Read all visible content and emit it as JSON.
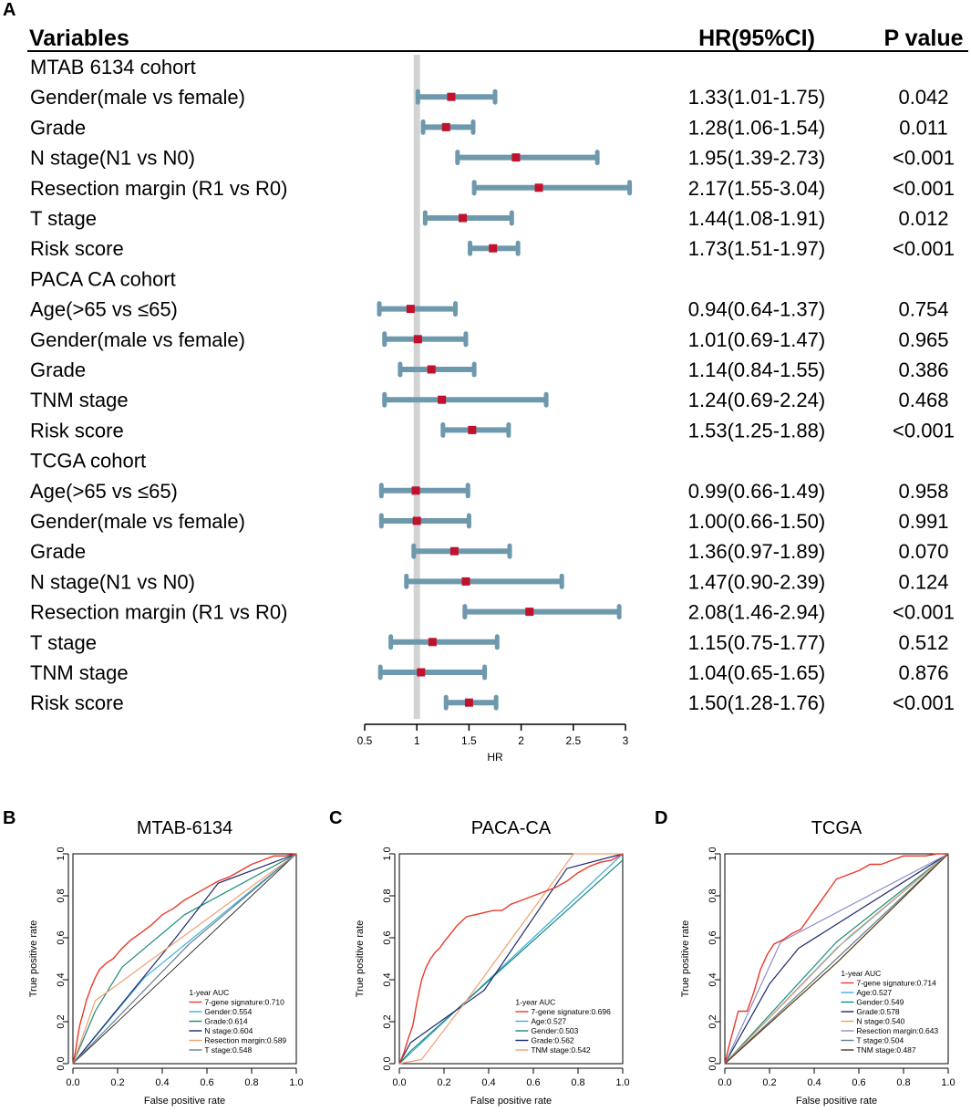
{
  "panels": {
    "A": "A",
    "B": "B",
    "C": "C",
    "D": "D"
  },
  "colors": {
    "ci": "#6e99ad",
    "point": "#c0122c",
    "ref": "#d3d3d3"
  },
  "chart_data": [
    {
      "type": "forest",
      "headers": {
        "variables": "Variables",
        "hr": "HR(95%CI)",
        "p": "P value"
      },
      "xlabel": "HR",
      "xlim": [
        0.5,
        3
      ],
      "xticks": [
        "0.5",
        "1",
        "1.5",
        "2",
        "2.5",
        "3"
      ],
      "ref": 1,
      "rows": [
        {
          "label": "MTAB 6134 cohort",
          "header": true
        },
        {
          "label": "Gender(male vs female)",
          "hr": 1.33,
          "lo": 1.01,
          "hi": 1.75,
          "ci": "1.33(1.01-1.75)",
          "p": "0.042"
        },
        {
          "label": "Grade",
          "hr": 1.28,
          "lo": 1.06,
          "hi": 1.54,
          "ci": "1.28(1.06-1.54)",
          "p": "0.011"
        },
        {
          "label": "N stage(N1 vs N0)",
          "hr": 1.95,
          "lo": 1.39,
          "hi": 2.73,
          "ci": "1.95(1.39-2.73)",
          "p": "<0.001"
        },
        {
          "label": "Resection margin (R1 vs R0)",
          "hr": 2.17,
          "lo": 1.55,
          "hi": 3.04,
          "ci": "2.17(1.55-3.04)",
          "p": "<0.001"
        },
        {
          "label": "T stage",
          "hr": 1.44,
          "lo": 1.08,
          "hi": 1.91,
          "ci": "1.44(1.08-1.91)",
          "p": "0.012"
        },
        {
          "label": "Risk score",
          "hr": 1.73,
          "lo": 1.51,
          "hi": 1.97,
          "ci": "1.73(1.51-1.97)",
          "p": "<0.001"
        },
        {
          "label": "PACA CA cohort",
          "header": true
        },
        {
          "label": "Age(>65 vs ≤65)",
          "hr": 0.94,
          "lo": 0.64,
          "hi": 1.37,
          "ci": "0.94(0.64-1.37)",
          "p": "0.754"
        },
        {
          "label": "Gender(male vs female)",
          "hr": 1.01,
          "lo": 0.69,
          "hi": 1.47,
          "ci": "1.01(0.69-1.47)",
          "p": "0.965"
        },
        {
          "label": "Grade",
          "hr": 1.14,
          "lo": 0.84,
          "hi": 1.55,
          "ci": "1.14(0.84-1.55)",
          "p": "0.386"
        },
        {
          "label": "TNM stage",
          "hr": 1.24,
          "lo": 0.69,
          "hi": 2.24,
          "ci": "1.24(0.69-2.24)",
          "p": "0.468"
        },
        {
          "label": "Risk score",
          "hr": 1.53,
          "lo": 1.25,
          "hi": 1.88,
          "ci": "1.53(1.25-1.88)",
          "p": "<0.001"
        },
        {
          "label": "TCGA cohort",
          "header": true
        },
        {
          "label": "Age(>65 vs ≤65)",
          "hr": 0.99,
          "lo": 0.66,
          "hi": 1.49,
          "ci": "0.99(0.66-1.49)",
          "p": "0.958"
        },
        {
          "label": "Gender(male vs female)",
          "hr": 1.0,
          "lo": 0.66,
          "hi": 1.5,
          "ci": "1.00(0.66-1.50)",
          "p": "0.991"
        },
        {
          "label": "Grade",
          "hr": 1.36,
          "lo": 0.97,
          "hi": 1.89,
          "ci": "1.36(0.97-1.89)",
          "p": "0.070"
        },
        {
          "label": "N stage(N1 vs N0)",
          "hr": 1.47,
          "lo": 0.9,
          "hi": 2.39,
          "ci": "1.47(0.90-2.39)",
          "p": "0.124"
        },
        {
          "label": "Resection margin (R1 vs R0)",
          "hr": 2.08,
          "lo": 1.46,
          "hi": 2.94,
          "ci": "2.08(1.46-2.94)",
          "p": "<0.001"
        },
        {
          "label": "T stage",
          "hr": 1.15,
          "lo": 0.75,
          "hi": 1.77,
          "ci": "1.15(0.75-1.77)",
          "p": "0.512"
        },
        {
          "label": "TNM stage",
          "hr": 1.04,
          "lo": 0.65,
          "hi": 1.65,
          "ci": "1.04(0.65-1.65)",
          "p": "0.876"
        },
        {
          "label": "Risk score",
          "hr": 1.5,
          "lo": 1.28,
          "hi": 1.76,
          "ci": "1.50(1.28-1.76)",
          "p": "<0.001"
        }
      ]
    },
    {
      "type": "line",
      "panel": "B",
      "title": "MTAB-6134",
      "xlabel": "False positive rate",
      "ylabel": "True positive rate",
      "xlim": [
        0,
        1
      ],
      "ylim": [
        0,
        1
      ],
      "ticks": [
        "0.0",
        "0.2",
        "0.4",
        "0.6",
        "0.8",
        "1.0"
      ],
      "legend_title": "1-year AUC",
      "legend_position": "bottom-right",
      "series": [
        {
          "name": "7-gene signature:0.710",
          "color": "#e8392a",
          "x": [
            0,
            0.01,
            0.02,
            0.03,
            0.04,
            0.05,
            0.06,
            0.08,
            0.1,
            0.12,
            0.15,
            0.18,
            0.22,
            0.26,
            0.3,
            0.35,
            0.4,
            0.45,
            0.5,
            0.55,
            0.6,
            0.65,
            0.7,
            0.75,
            0.8,
            0.85,
            0.9,
            0.95,
            1.0
          ],
          "y": [
            0,
            0.05,
            0.12,
            0.18,
            0.22,
            0.26,
            0.3,
            0.36,
            0.41,
            0.45,
            0.48,
            0.5,
            0.55,
            0.59,
            0.62,
            0.66,
            0.71,
            0.74,
            0.78,
            0.81,
            0.84,
            0.87,
            0.89,
            0.92,
            0.95,
            0.97,
            0.99,
            0.99,
            1.0
          ]
        },
        {
          "name": "Gender:0.554",
          "color": "#3ab0e0",
          "x": [
            0,
            0.32,
            1.0
          ],
          "y": [
            0,
            0.41,
            1.0
          ]
        },
        {
          "name": "Grade:0.614",
          "color": "#1a8a7a",
          "x": [
            0,
            0.1,
            0.22,
            0.5,
            1.0
          ],
          "y": [
            0,
            0.25,
            0.46,
            0.71,
            1.0
          ]
        },
        {
          "name": "N stage:0.604",
          "color": "#1e2a6e",
          "x": [
            0,
            0.46,
            0.65,
            1.0
          ],
          "y": [
            0,
            0.6,
            0.86,
            1.0
          ]
        },
        {
          "name": "Resection margin:0.589",
          "color": "#f0a070",
          "x": [
            0,
            0.1,
            1.0
          ],
          "y": [
            0,
            0.3,
            1.0
          ]
        },
        {
          "name": "T stage:0.548",
          "color": "#6a8090",
          "x": [
            0,
            0.52,
            1.0
          ],
          "y": [
            0,
            0.57,
            1.0
          ]
        }
      ]
    },
    {
      "type": "line",
      "panel": "C",
      "title": "PACA-CA",
      "xlabel": "False positive rate",
      "ylabel": "True positive rate",
      "xlim": [
        0,
        1
      ],
      "ylim": [
        0,
        1
      ],
      "ticks": [
        "0.0",
        "0.2",
        "0.4",
        "0.6",
        "0.8",
        "1.0"
      ],
      "legend_title": "1-year AUC",
      "legend_position": "bottom-right",
      "series": [
        {
          "name": "7-gene signature:0.696",
          "color": "#e8392a",
          "x": [
            0,
            0.02,
            0.04,
            0.06,
            0.08,
            0.1,
            0.12,
            0.14,
            0.16,
            0.18,
            0.2,
            0.23,
            0.26,
            0.3,
            0.34,
            0.38,
            0.42,
            0.46,
            0.5,
            0.55,
            0.6,
            0.65,
            0.7,
            0.75,
            0.8,
            0.85,
            0.9,
            0.95,
            1.0
          ],
          "y": [
            0,
            0.05,
            0.12,
            0.18,
            0.3,
            0.4,
            0.46,
            0.5,
            0.53,
            0.55,
            0.58,
            0.62,
            0.66,
            0.7,
            0.71,
            0.72,
            0.73,
            0.73,
            0.76,
            0.78,
            0.8,
            0.82,
            0.84,
            0.87,
            0.91,
            0.94,
            0.96,
            0.97,
            1.0
          ]
        },
        {
          "name": "Age:0.527",
          "color": "#3ab0e0",
          "x": [
            0,
            1.0
          ],
          "y": [
            0,
            1.0
          ]
        },
        {
          "name": "Gender:0.503",
          "color": "#1a8a7a",
          "x": [
            0,
            0.05,
            1.0
          ],
          "y": [
            0,
            0.06,
            0.97
          ]
        },
        {
          "name": "Grade:0.562",
          "color": "#1e2a6e",
          "x": [
            0,
            0.05,
            0.38,
            0.75,
            1.0
          ],
          "y": [
            0,
            0.1,
            0.35,
            0.93,
            1.0
          ]
        },
        {
          "name": "TNM stage:0.542",
          "color": "#f0a070",
          "x": [
            0,
            0.1,
            0.3,
            0.78,
            0.95,
            1.0
          ],
          "y": [
            0,
            0.02,
            0.3,
            1.0,
            1.0,
            1.0
          ]
        }
      ]
    },
    {
      "type": "line",
      "panel": "D",
      "title": "TCGA",
      "xlabel": "False positive rate",
      "ylabel": "True positive rate",
      "xlim": [
        0,
        1
      ],
      "ylim": [
        0,
        1
      ],
      "ticks": [
        "0.0",
        "0.2",
        "0.4",
        "0.6",
        "0.8",
        "1.0"
      ],
      "legend_title": "1-year AUC",
      "legend_position": "bottom-right",
      "series": [
        {
          "name": "7-gene signature:0.714",
          "color": "#e8392a",
          "x": [
            0,
            0.02,
            0.04,
            0.06,
            0.08,
            0.1,
            0.13,
            0.16,
            0.19,
            0.22,
            0.26,
            0.3,
            0.34,
            0.38,
            0.42,
            0.46,
            0.5,
            0.55,
            0.6,
            0.65,
            0.7,
            0.75,
            0.8,
            0.85,
            0.9,
            0.95,
            1.0
          ],
          "y": [
            0,
            0.09,
            0.17,
            0.25,
            0.25,
            0.25,
            0.34,
            0.45,
            0.52,
            0.57,
            0.59,
            0.62,
            0.64,
            0.7,
            0.76,
            0.82,
            0.88,
            0.9,
            0.92,
            0.95,
            0.95,
            0.97,
            0.99,
            0.99,
            0.99,
            1.0,
            1.0
          ]
        },
        {
          "name": "Age:0.527",
          "color": "#3ab0e0",
          "x": [
            0,
            0.5,
            1.0
          ],
          "y": [
            0,
            0.55,
            1.0
          ]
        },
        {
          "name": "Gender:0.549",
          "color": "#1a8a7a",
          "x": [
            0,
            0.5,
            1.0
          ],
          "y": [
            0,
            0.58,
            1.0
          ]
        },
        {
          "name": "Grade:0.578",
          "color": "#1e2a6e",
          "x": [
            0,
            0.2,
            0.33,
            1.0
          ],
          "y": [
            0,
            0.38,
            0.55,
            1.0
          ]
        },
        {
          "name": "N stage:0.540",
          "color": "#f0a070",
          "x": [
            0,
            0.55,
            1.0
          ],
          "y": [
            0,
            0.6,
            1.0
          ]
        },
        {
          "name": "Resection margin:0.643",
          "color": "#8a90c8",
          "x": [
            0,
            0.25,
            1.0
          ],
          "y": [
            0,
            0.58,
            1.0
          ]
        },
        {
          "name": "T stage:0.504",
          "color": "#6a8090",
          "x": [
            0,
            1.0
          ],
          "y": [
            0,
            1.0
          ]
        },
        {
          "name": "TNM stage:0.487",
          "color": "#5a3a10",
          "x": [
            0,
            0.5,
            1.0
          ],
          "y": [
            0,
            0.48,
            1.0
          ]
        }
      ]
    }
  ]
}
